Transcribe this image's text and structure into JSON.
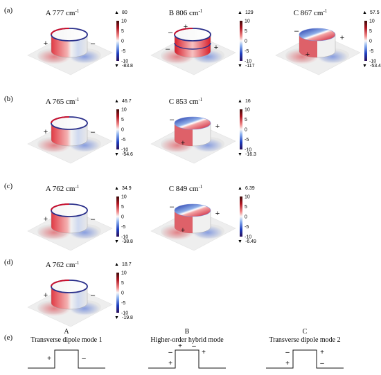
{
  "rows": [
    {
      "label": "(a)",
      "panels": [
        {
          "mode": "A",
          "freq": "777",
          "unit": "cm",
          "exp": "-1",
          "max": "80",
          "min": "-83.8",
          "ticks": [
            "10",
            "5",
            "0",
            "-5",
            "-10"
          ],
          "signs": [
            "+",
            "–"
          ]
        },
        {
          "mode": "B",
          "freq": "806",
          "unit": "cm",
          "exp": "-1",
          "max": "129",
          "min": "-117",
          "ticks": [
            "10",
            "5",
            "0",
            "-5",
            "-10"
          ],
          "signs": [
            "–",
            "+",
            "–",
            "+"
          ]
        },
        {
          "mode": "C",
          "freq": "867",
          "unit": "cm",
          "exp": "-1",
          "max": "57.5",
          "min": "-53.4",
          "ticks": [
            "10",
            "5",
            "0",
            "-5",
            "-10"
          ],
          "signs": [
            "–",
            "+",
            "+"
          ]
        }
      ]
    },
    {
      "label": "(b)",
      "panels": [
        {
          "mode": "A",
          "freq": "765",
          "unit": "cm",
          "exp": "-1",
          "max": "46.7",
          "min": "-54.6",
          "ticks": [
            "10",
            "5",
            "0",
            "-5",
            "-10"
          ],
          "signs": [
            "+",
            "–"
          ]
        },
        {
          "mode": "C",
          "freq": "853",
          "unit": "cm",
          "exp": "-1",
          "max": "16",
          "min": "-16.3",
          "ticks": [
            "10",
            "5",
            "0",
            "-5",
            "-10"
          ],
          "signs": [
            "–",
            "+",
            "+"
          ]
        }
      ]
    },
    {
      "label": "(c)",
      "panels": [
        {
          "mode": "A",
          "freq": "762",
          "unit": "cm",
          "exp": "-1",
          "max": "34.9",
          "min": "-38.8",
          "ticks": [
            "10",
            "5",
            "0",
            "-5",
            "-10"
          ],
          "signs": [
            "+",
            "–"
          ]
        },
        {
          "mode": "C",
          "freq": "849",
          "unit": "cm",
          "exp": "-1",
          "max": "6.39",
          "min": "-6.49",
          "ticks": [
            "10",
            "5",
            "0",
            "-5",
            "-10"
          ],
          "signs": [
            "–",
            "+",
            "+"
          ]
        }
      ]
    },
    {
      "label": "(d)",
      "panels": [
        {
          "mode": "A",
          "freq": "762",
          "unit": "cm",
          "exp": "-1",
          "max": "18.7",
          "min": "-19.8",
          "ticks": [
            "10",
            "5",
            "0",
            "-5",
            "-10"
          ],
          "signs": [
            "+",
            "–"
          ]
        }
      ]
    }
  ],
  "schematics": {
    "label": "(e)",
    "items": [
      {
        "letter": "A",
        "title": "Transverse dipole mode 1",
        "signs": [
          "+",
          "–"
        ]
      },
      {
        "letter": "B",
        "title": "Higher-order hybrid mode",
        "signs": [
          "+",
          "–",
          "–",
          "+",
          "+"
        ]
      },
      {
        "letter": "C",
        "title": "Transverse dipole mode 2",
        "signs": [
          "–",
          "+",
          "+",
          "–"
        ]
      }
    ]
  },
  "colors": {
    "positive": "#c8102e",
    "negative": "#1f3fbf",
    "neutral": "#f2f2f2"
  }
}
